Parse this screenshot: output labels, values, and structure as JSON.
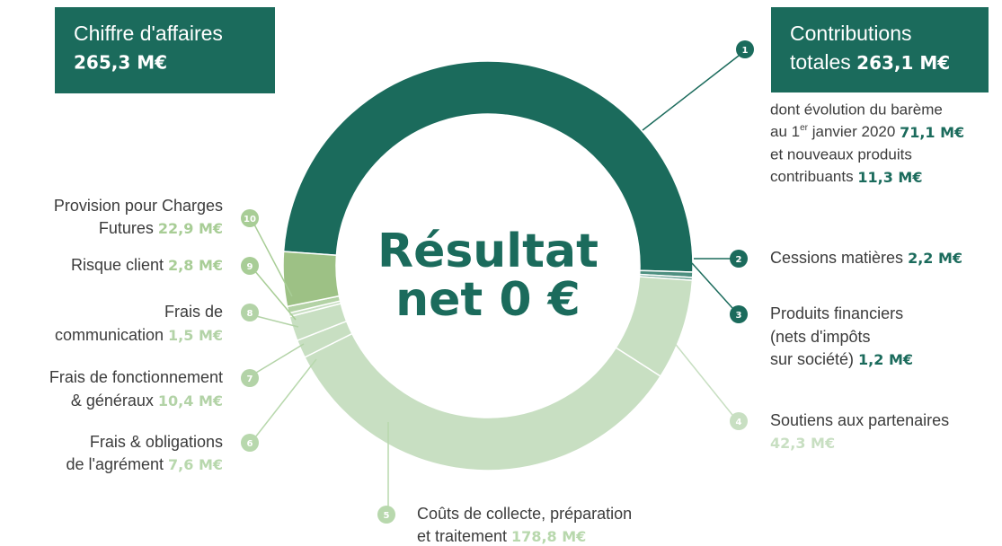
{
  "revenue": {
    "label": "Chiffre d'affaires",
    "value": "265,3 M€"
  },
  "center": [
    "Résultat",
    "net 0 €"
  ],
  "note": {
    "line1": "dont évolution du barème",
    "line2a": "au 1",
    "sup": "er",
    "line2b": " janvier 2020 ",
    "value1": "71,1 M€",
    "line3": "et nouveaux produits",
    "line4": "contribuants ",
    "value2": "11,3 M€"
  },
  "chart_data": {
    "type": "donut",
    "badges": [
      "1",
      "2",
      "3",
      "4",
      "5",
      "6",
      "7",
      "8",
      "9",
      "10"
    ],
    "categories": [
      [
        "Contributions",
        "totales "
      ],
      [
        "Cessions matières "
      ],
      [
        "Produits financiers",
        "(nets d'impôts",
        "sur société) "
      ],
      [
        "Soutiens aux partenaires",
        ""
      ],
      [
        "Coûts de collecte, préparation",
        "et traitement "
      ],
      [
        "Frais & obligations",
        "de l'agrément "
      ],
      [
        "Frais de fonctionnement",
        "& généraux "
      ],
      [
        "Frais de ",
        "communication "
      ],
      [
        "Risque client "
      ],
      [
        "Provision pour Charges ",
        "Futures  "
      ]
    ],
    "values": [
      263.1,
      2.2,
      1.2,
      42.3,
      178.8,
      7.6,
      10.4,
      1.5,
      2.8,
      22.9
    ],
    "value_labels": [
      "263,1 M€",
      "2,2 M€",
      "1,2 M€",
      "42,3 M€",
      "178,8 M€",
      "7,6 M€",
      "10,4 M€",
      "1,5 M€",
      "2,8 M€",
      "22,9 M€"
    ],
    "colors": [
      "#1b6b5c",
      "#4d8f80",
      "#6aa394",
      "#c8dfc2",
      "#c8dfc2",
      "#c8dfc2",
      "#c8dfc2",
      "#c8dfc2",
      "#b3d2a5",
      "#9dc185"
    ],
    "accent_colors": [
      "#1b6b5c",
      "#1b6b5c",
      "#1b6b5c",
      "#c8dfc2",
      "#b8d8ad",
      "#b8d8ad",
      "#b3d3a7",
      "#b3d3a7",
      "#a8cd96",
      "#a8cd96"
    ]
  }
}
